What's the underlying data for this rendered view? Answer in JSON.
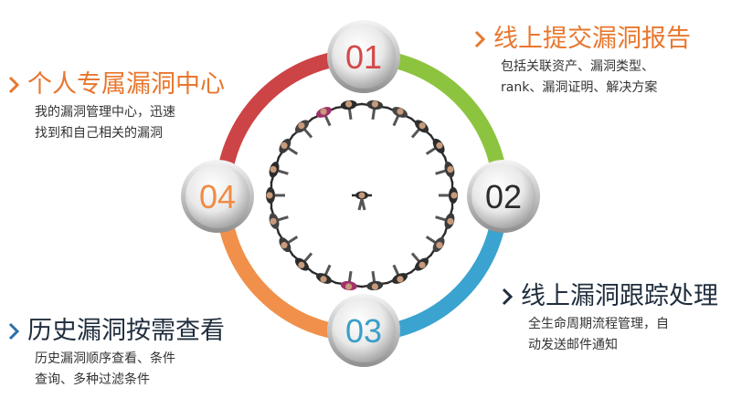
{
  "diagram": {
    "steps": [
      {
        "number": "01",
        "title": "线上提交漏洞报告",
        "desc": [
          "包括关联资产、漏洞类型、",
          "rank、漏洞证明、解决方案"
        ],
        "arc_color": "#8dc43f",
        "number_color": "#d4494a",
        "chevron_color": "#e8772e"
      },
      {
        "number": "02",
        "title": "线上漏洞跟踪处理",
        "desc": [
          "全生命周期流程管理，自",
          "动发送邮件通知"
        ],
        "arc_color": "#3aa3cf",
        "number_color": "#2b2b2b",
        "chevron_color": "#1f2d3d"
      },
      {
        "number": "03",
        "title": "历史漏洞按需查看",
        "desc": [
          "历史漏洞顺序查看、条件",
          "查询、多种过滤条件"
        ],
        "arc_color": "#f0904a",
        "number_color": "#3a9fc8",
        "chevron_color": "#2a6fa8"
      },
      {
        "number": "04",
        "title": "个人专属漏洞中心",
        "desc": [
          "我的漏洞管理中心，迅速",
          "找到和自己相关的漏洞"
        ],
        "arc_color": "#cc4446",
        "number_color": "#f08b45",
        "chevron_color": "#e8772e"
      }
    ]
  }
}
